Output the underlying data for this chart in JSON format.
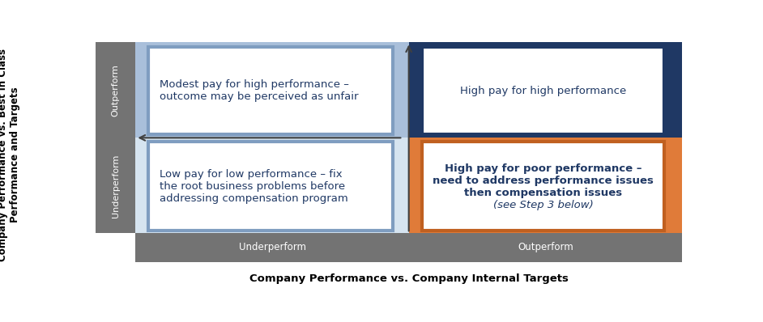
{
  "title_x": "Company Performance vs. Company Internal Targets",
  "title_y": "Company Performance vs. Best in Class\nPerformance and Targets",
  "x_label_left": "Underperform",
  "x_label_right": "Outperform",
  "y_label_bottom": "Underperform",
  "y_label_top": "Outperform",
  "quad_top_left_bg": "#a9bfda",
  "quad_top_right_bg": "#1f3864",
  "quad_bottom_left_bg": "#d6e4f0",
  "quad_bottom_right_bg": "#e07b39",
  "inner_box_border_top_left": "#7f9dc0",
  "inner_box_border_top_right": "#1f3864",
  "inner_box_border_bottom_left": "#7f9dc0",
  "inner_box_border_bottom_right": "#c06020",
  "text_top_left": "Modest pay for high performance –\noutcome may be perceived as unfair",
  "text_top_right": "High pay for high performance",
  "text_bottom_left": "Low pay for low performance – fix\nthe root business problems before\naddressing compensation program",
  "text_bottom_right_line1": "High pay for poor performance –",
  "text_bottom_right_line2": "need to address performance issues",
  "text_bottom_right_line3": "then compensation issues",
  "text_bottom_right_line4": "(see Step 3 below)",
  "sidebar_color": "#737373",
  "bottom_bar_color": "#737373",
  "arrow_color": "#404040",
  "font_color_dark": "#1f3864",
  "font_color_sidebar": "#ffffff",
  "font_color_bottom_right": "#1f3864"
}
